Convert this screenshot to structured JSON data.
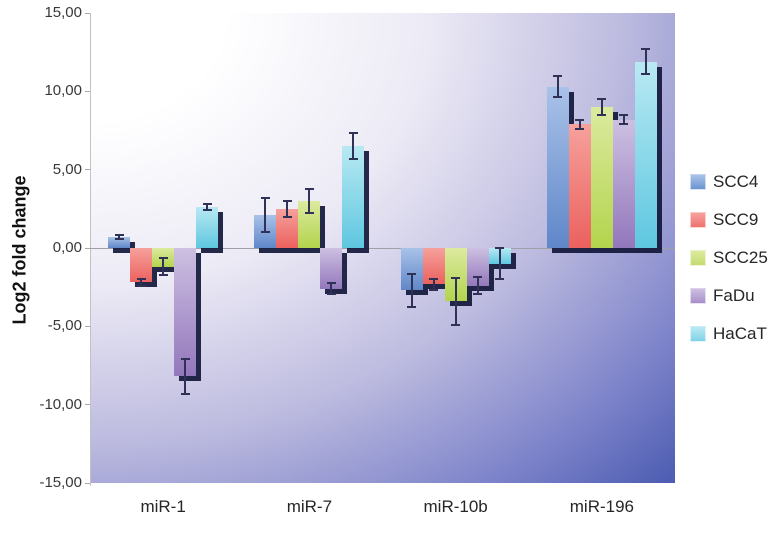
{
  "chart_data": {
    "type": "bar",
    "title": "",
    "xlabel": "",
    "ylabel": "Log2 fold change",
    "ylim": [
      -15,
      15
    ],
    "ytick_step": 5,
    "ytick_labels": [
      "15,00",
      "10,00",
      "5,00",
      "0,00",
      "-5,00",
      "-10,00",
      "-15,00"
    ],
    "categories": [
      "miR-1",
      "miR-7",
      "miR-10b",
      "miR-196"
    ],
    "series": [
      {
        "name": "SCC4",
        "color": "#5f87c9",
        "color_light": "#a9c2e8",
        "legend_color": "#6d94d3",
        "values": [
          0.7,
          2.1,
          -2.7,
          10.3
        ],
        "errors": [
          0.15,
          1.1,
          1.05,
          0.65
        ]
      },
      {
        "name": "SCC9",
        "color": "#eb615e",
        "color_light": "#f6a19c",
        "legend_color": "#ee7370",
        "values": [
          -2.2,
          2.5,
          -2.3,
          7.9
        ],
        "errors": [
          0.2,
          0.5,
          0.35,
          0.3
        ]
      },
      {
        "name": "SCC25",
        "color": "#b3d44d",
        "color_light": "#dcea9f",
        "legend_color": "#c4dc71",
        "values": [
          -1.2,
          3.0,
          -3.4,
          9.0
        ],
        "errors": [
          0.55,
          0.75,
          1.5,
          0.5
        ]
      },
      {
        "name": "FaDu",
        "color": "#9377bc",
        "color_light": "#cdc0e2",
        "legend_color": "#a68fc9",
        "values": [
          -8.2,
          -2.6,
          -2.4,
          8.2
        ],
        "errors": [
          1.1,
          0.35,
          0.55,
          0.3
        ]
      },
      {
        "name": "HaCaT",
        "color": "#5ec7e0",
        "color_light": "#b9e9f3",
        "legend_color": "#7fd4e8",
        "values": [
          2.6,
          6.5,
          -1.0,
          11.9
        ],
        "errors": [
          0.2,
          0.85,
          1.0,
          0.8
        ]
      }
    ],
    "error_bars": true,
    "grid": false,
    "legend_position": "right",
    "colors": {
      "bar_shadow": "#12173a",
      "error_bar": "#2f3256",
      "plot_bg_start": "#ffffff",
      "plot_bg_end": "#4355ad"
    }
  }
}
